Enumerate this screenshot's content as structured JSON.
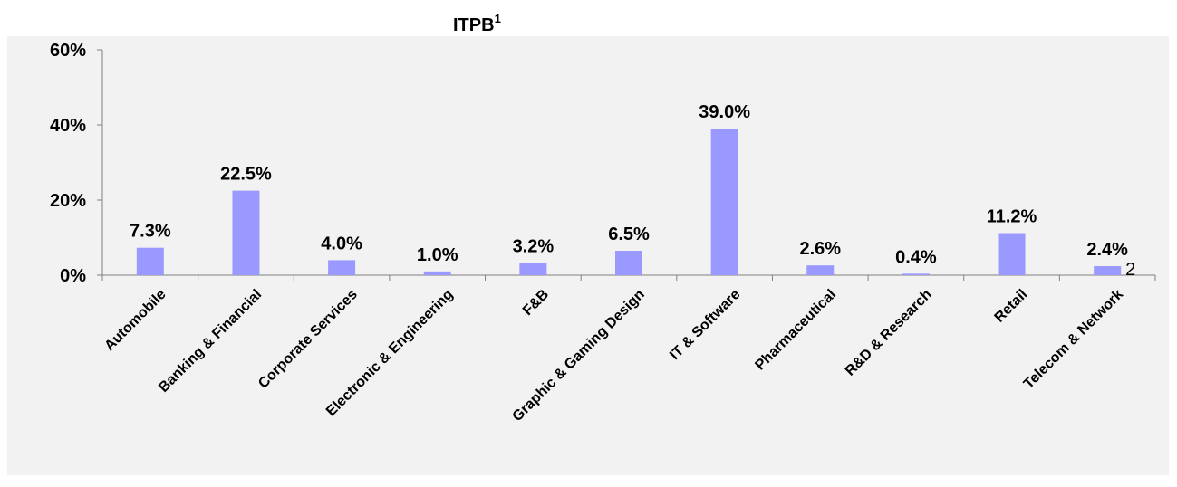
{
  "chart_data": {
    "type": "bar",
    "title": "ITPB",
    "title_superscript": "1",
    "annotation": "2",
    "categories": [
      "Automobile",
      "Banking & Financial",
      "Corporate Services",
      "Electronic & Engineering",
      "F&B",
      "Graphic & Gaming Design",
      "IT & Software",
      "Pharmaceutical",
      "R&D & Research",
      "Retail",
      "Telecom & Network"
    ],
    "values": [
      7.3,
      22.5,
      4.0,
      1.0,
      3.2,
      6.5,
      39.0,
      2.6,
      0.4,
      11.2,
      2.4
    ],
    "value_labels": [
      "7.3%",
      "22.5%",
      "4.0%",
      "1.0%",
      "3.2%",
      "6.5%",
      "39.0%",
      "2.6%",
      "0.4%",
      "11.2%",
      "2.4%"
    ],
    "color": "#9999ff",
    "ylim": [
      0,
      60
    ],
    "yticks": [
      {
        "value": 0,
        "label": "0%"
      },
      {
        "value": 20,
        "label": "20%"
      },
      {
        "value": 40,
        "label": "40%"
      },
      {
        "value": 60,
        "label": "60%"
      }
    ],
    "grid": false
  }
}
